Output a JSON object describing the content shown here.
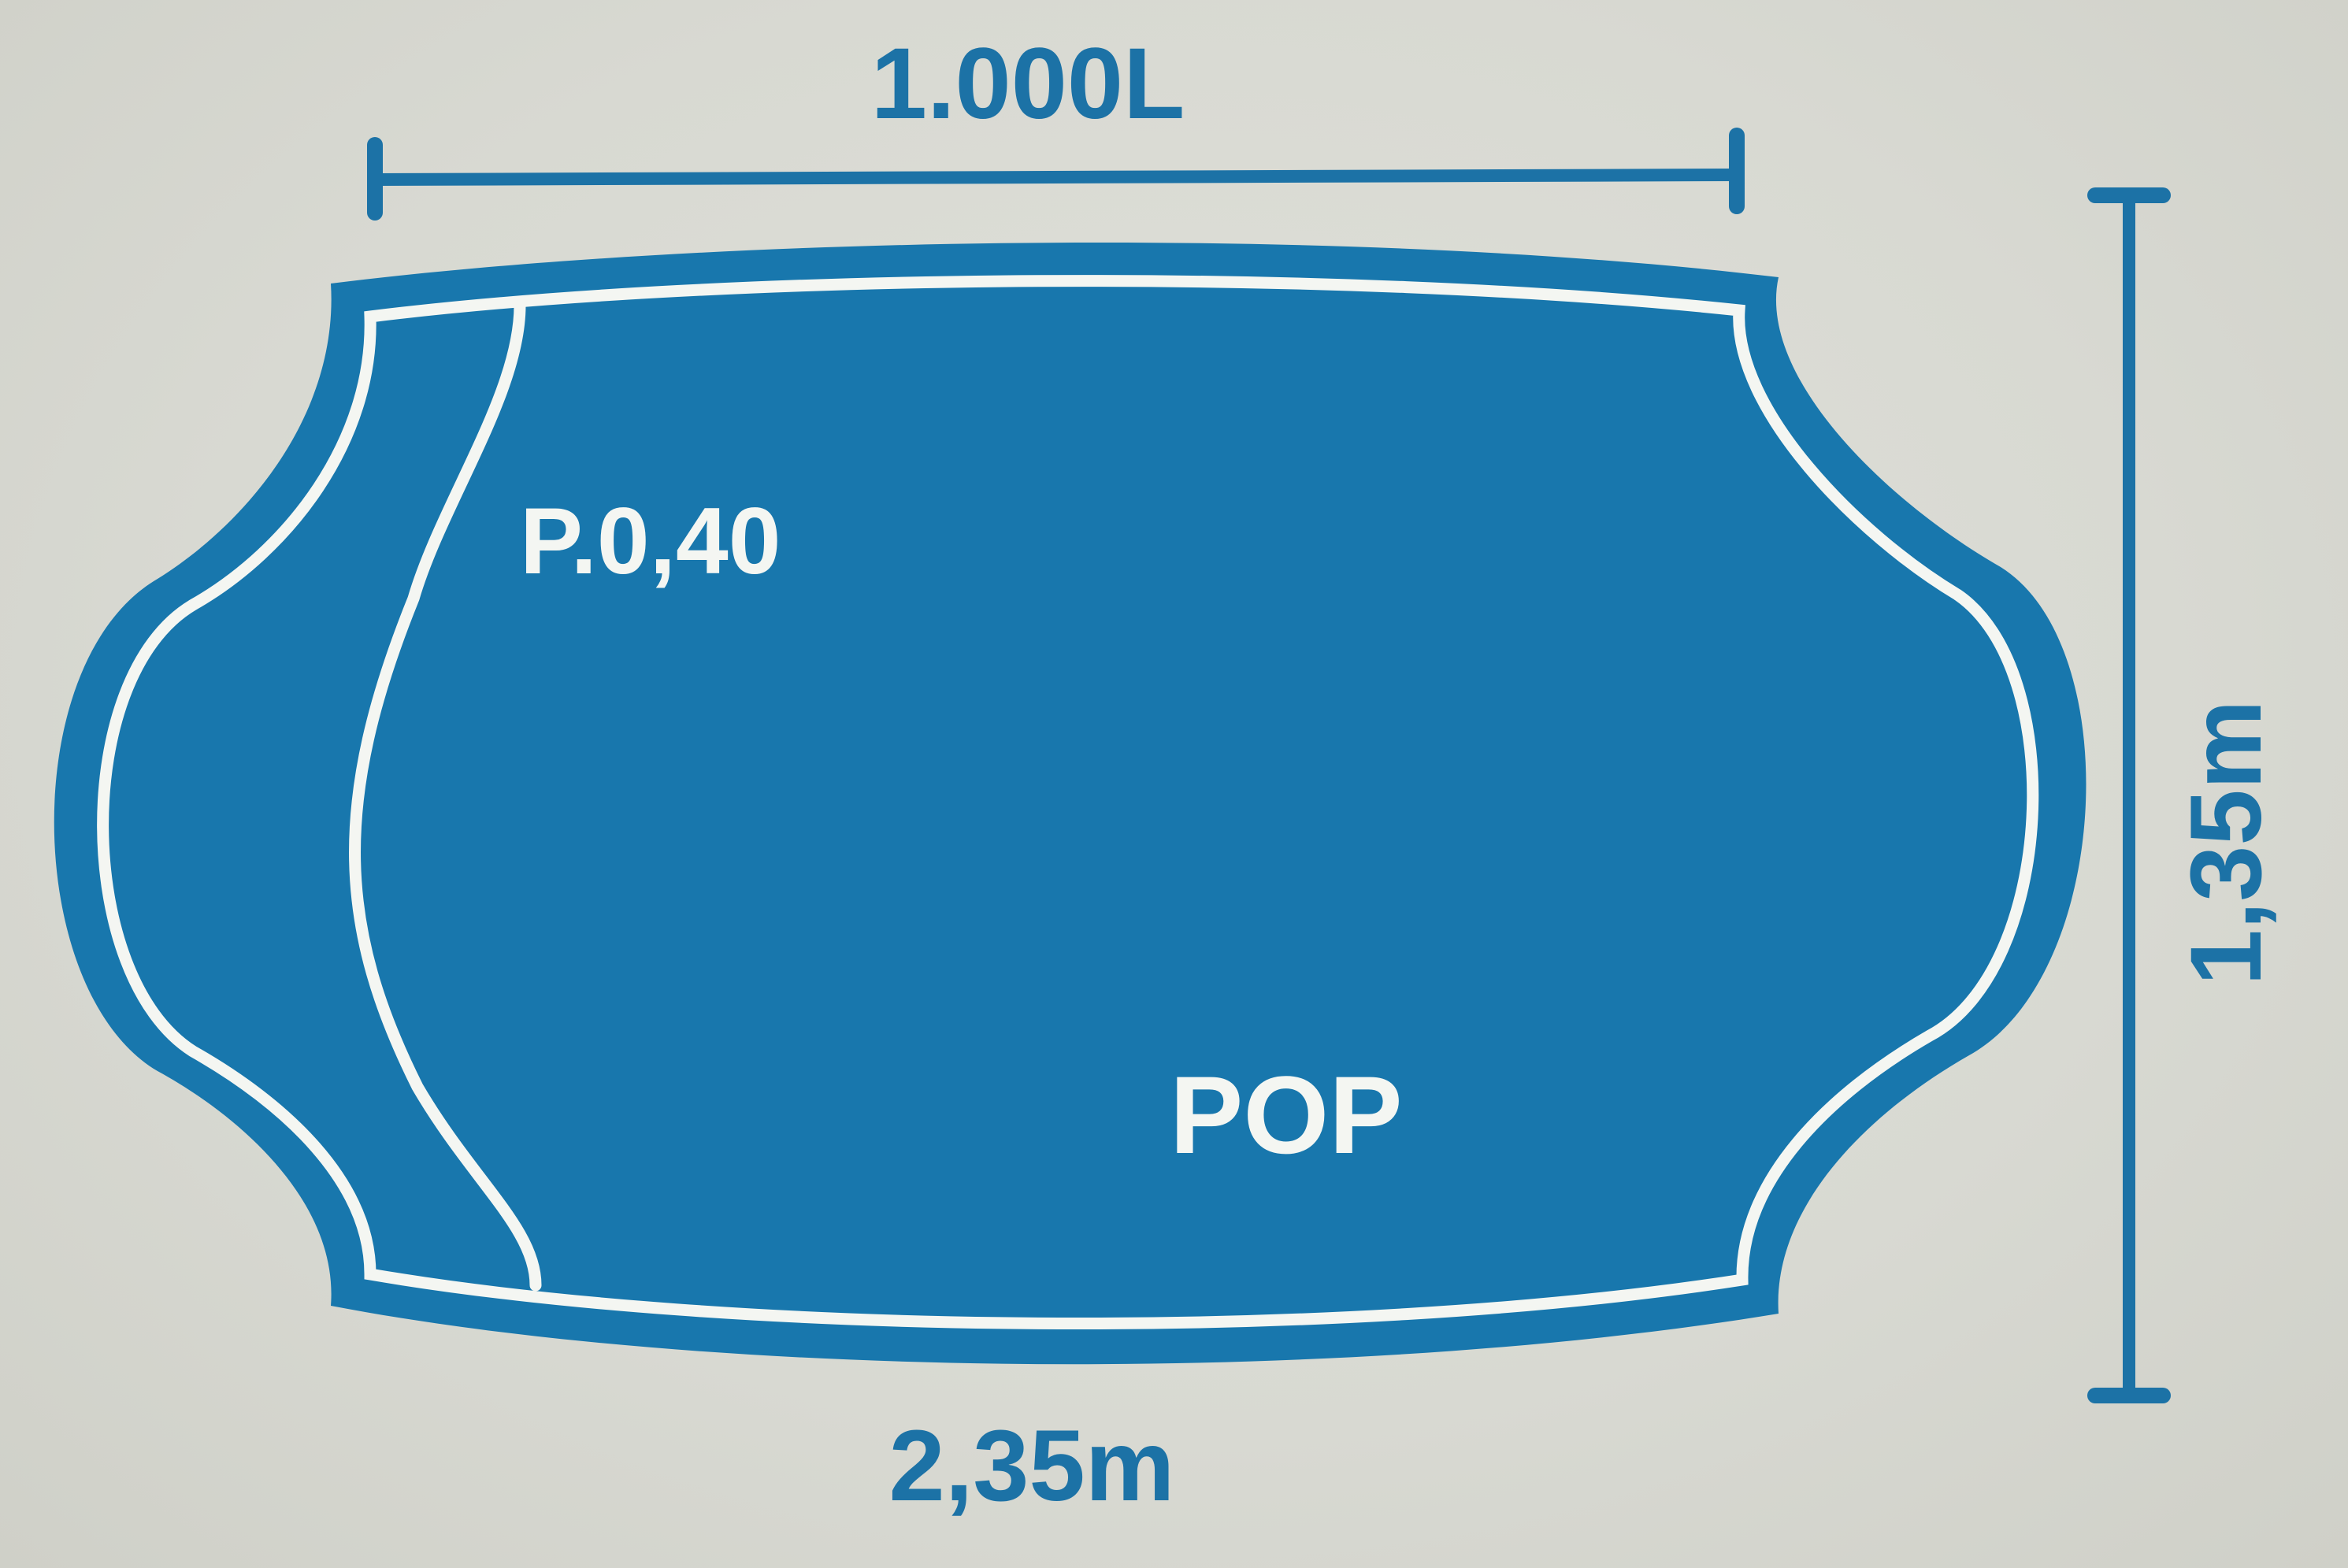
{
  "capacity_label": "1.000L",
  "width_label": "2,35m",
  "height_label": "1,35m",
  "depth_label": "P.0,40",
  "model_label": "POP",
  "colors": {
    "pool_blue": "#1877ad",
    "dimension_blue": "#1c72a6",
    "outline_white": "#f4f6f2",
    "background": "#d9dad3"
  }
}
